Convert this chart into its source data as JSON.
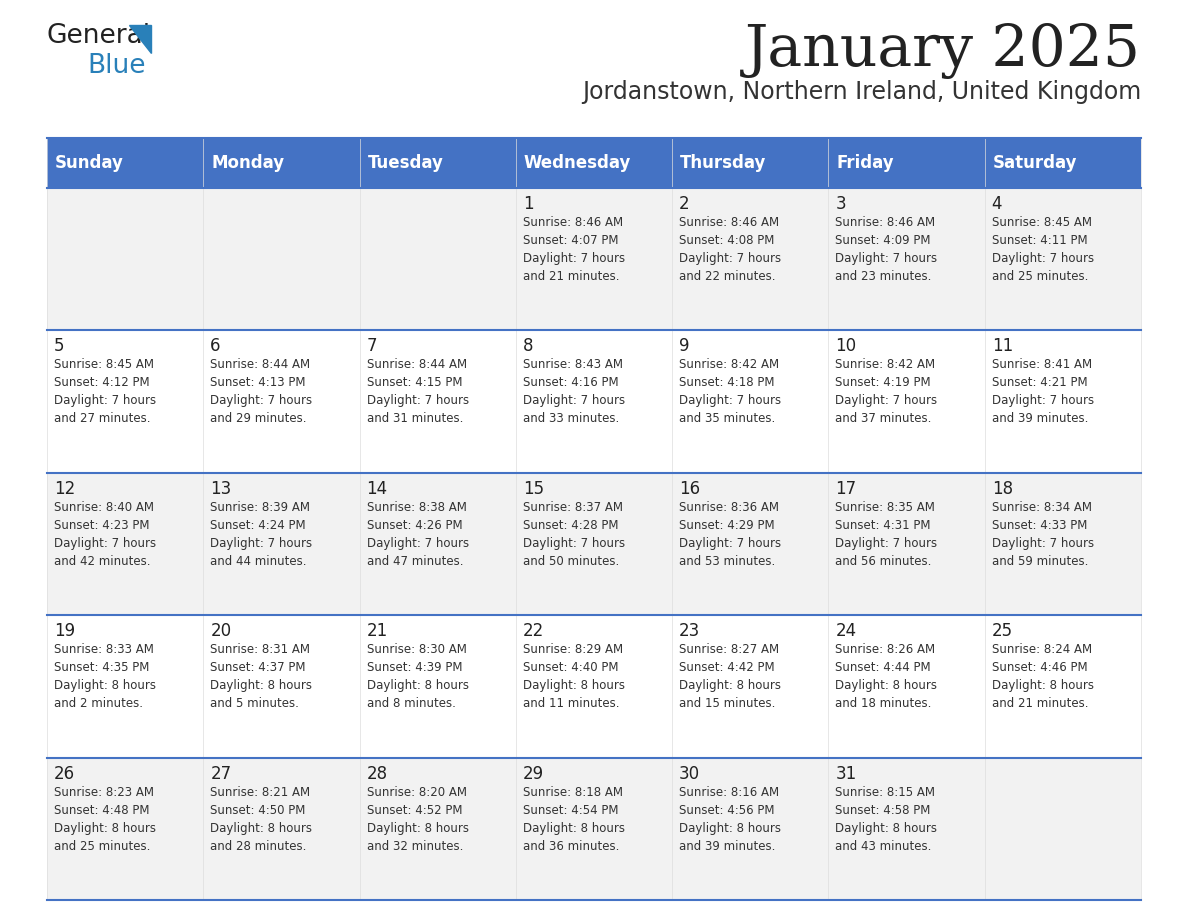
{
  "title": "January 2025",
  "subtitle": "Jordanstown, Northern Ireland, United Kingdom",
  "header_bg": "#4472C4",
  "header_text_color": "#FFFFFF",
  "cell_bg_odd": "#F2F2F2",
  "cell_bg_even": "#FFFFFF",
  "border_color": "#4472C4",
  "days_of_week": [
    "Sunday",
    "Monday",
    "Tuesday",
    "Wednesday",
    "Thursday",
    "Friday",
    "Saturday"
  ],
  "calendar": [
    [
      {
        "day": "",
        "info": ""
      },
      {
        "day": "",
        "info": ""
      },
      {
        "day": "",
        "info": ""
      },
      {
        "day": "1",
        "info": "Sunrise: 8:46 AM\nSunset: 4:07 PM\nDaylight: 7 hours\nand 21 minutes."
      },
      {
        "day": "2",
        "info": "Sunrise: 8:46 AM\nSunset: 4:08 PM\nDaylight: 7 hours\nand 22 minutes."
      },
      {
        "day": "3",
        "info": "Sunrise: 8:46 AM\nSunset: 4:09 PM\nDaylight: 7 hours\nand 23 minutes."
      },
      {
        "day": "4",
        "info": "Sunrise: 8:45 AM\nSunset: 4:11 PM\nDaylight: 7 hours\nand 25 minutes."
      }
    ],
    [
      {
        "day": "5",
        "info": "Sunrise: 8:45 AM\nSunset: 4:12 PM\nDaylight: 7 hours\nand 27 minutes."
      },
      {
        "day": "6",
        "info": "Sunrise: 8:44 AM\nSunset: 4:13 PM\nDaylight: 7 hours\nand 29 minutes."
      },
      {
        "day": "7",
        "info": "Sunrise: 8:44 AM\nSunset: 4:15 PM\nDaylight: 7 hours\nand 31 minutes."
      },
      {
        "day": "8",
        "info": "Sunrise: 8:43 AM\nSunset: 4:16 PM\nDaylight: 7 hours\nand 33 minutes."
      },
      {
        "day": "9",
        "info": "Sunrise: 8:42 AM\nSunset: 4:18 PM\nDaylight: 7 hours\nand 35 minutes."
      },
      {
        "day": "10",
        "info": "Sunrise: 8:42 AM\nSunset: 4:19 PM\nDaylight: 7 hours\nand 37 minutes."
      },
      {
        "day": "11",
        "info": "Sunrise: 8:41 AM\nSunset: 4:21 PM\nDaylight: 7 hours\nand 39 minutes."
      }
    ],
    [
      {
        "day": "12",
        "info": "Sunrise: 8:40 AM\nSunset: 4:23 PM\nDaylight: 7 hours\nand 42 minutes."
      },
      {
        "day": "13",
        "info": "Sunrise: 8:39 AM\nSunset: 4:24 PM\nDaylight: 7 hours\nand 44 minutes."
      },
      {
        "day": "14",
        "info": "Sunrise: 8:38 AM\nSunset: 4:26 PM\nDaylight: 7 hours\nand 47 minutes."
      },
      {
        "day": "15",
        "info": "Sunrise: 8:37 AM\nSunset: 4:28 PM\nDaylight: 7 hours\nand 50 minutes."
      },
      {
        "day": "16",
        "info": "Sunrise: 8:36 AM\nSunset: 4:29 PM\nDaylight: 7 hours\nand 53 minutes."
      },
      {
        "day": "17",
        "info": "Sunrise: 8:35 AM\nSunset: 4:31 PM\nDaylight: 7 hours\nand 56 minutes."
      },
      {
        "day": "18",
        "info": "Sunrise: 8:34 AM\nSunset: 4:33 PM\nDaylight: 7 hours\nand 59 minutes."
      }
    ],
    [
      {
        "day": "19",
        "info": "Sunrise: 8:33 AM\nSunset: 4:35 PM\nDaylight: 8 hours\nand 2 minutes."
      },
      {
        "day": "20",
        "info": "Sunrise: 8:31 AM\nSunset: 4:37 PM\nDaylight: 8 hours\nand 5 minutes."
      },
      {
        "day": "21",
        "info": "Sunrise: 8:30 AM\nSunset: 4:39 PM\nDaylight: 8 hours\nand 8 minutes."
      },
      {
        "day": "22",
        "info": "Sunrise: 8:29 AM\nSunset: 4:40 PM\nDaylight: 8 hours\nand 11 minutes."
      },
      {
        "day": "23",
        "info": "Sunrise: 8:27 AM\nSunset: 4:42 PM\nDaylight: 8 hours\nand 15 minutes."
      },
      {
        "day": "24",
        "info": "Sunrise: 8:26 AM\nSunset: 4:44 PM\nDaylight: 8 hours\nand 18 minutes."
      },
      {
        "day": "25",
        "info": "Sunrise: 8:24 AM\nSunset: 4:46 PM\nDaylight: 8 hours\nand 21 minutes."
      }
    ],
    [
      {
        "day": "26",
        "info": "Sunrise: 8:23 AM\nSunset: 4:48 PM\nDaylight: 8 hours\nand 25 minutes."
      },
      {
        "day": "27",
        "info": "Sunrise: 8:21 AM\nSunset: 4:50 PM\nDaylight: 8 hours\nand 28 minutes."
      },
      {
        "day": "28",
        "info": "Sunrise: 8:20 AM\nSunset: 4:52 PM\nDaylight: 8 hours\nand 32 minutes."
      },
      {
        "day": "29",
        "info": "Sunrise: 8:18 AM\nSunset: 4:54 PM\nDaylight: 8 hours\nand 36 minutes."
      },
      {
        "day": "30",
        "info": "Sunrise: 8:16 AM\nSunset: 4:56 PM\nDaylight: 8 hours\nand 39 minutes."
      },
      {
        "day": "31",
        "info": "Sunrise: 8:15 AM\nSunset: 4:58 PM\nDaylight: 8 hours\nand 43 minutes."
      },
      {
        "day": "",
        "info": ""
      }
    ]
  ],
  "logo_general_color": "#222222",
  "logo_blue_color": "#2980B9",
  "title_color": "#222222",
  "subtitle_color": "#333333",
  "fig_width": 11.88,
  "fig_height": 9.18,
  "dpi": 100
}
